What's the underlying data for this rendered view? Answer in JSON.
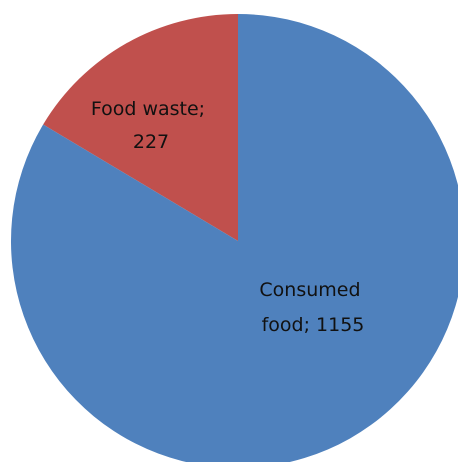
{
  "chart_data": {
    "type": "pie",
    "title": "",
    "slices": [
      {
        "name": "Food waste",
        "value": 227,
        "color": "#C0504D",
        "label_lines": [
          "Food waste;",
          "227"
        ]
      },
      {
        "name": "Consumed food",
        "value": 1155,
        "color": "#4F81BD",
        "label_lines": [
          "Consumed",
          "food; 1155"
        ]
      }
    ],
    "start": "12 o'clock",
    "direction": "counter-clockwise",
    "legend": "none",
    "data_labels": "inside"
  }
}
